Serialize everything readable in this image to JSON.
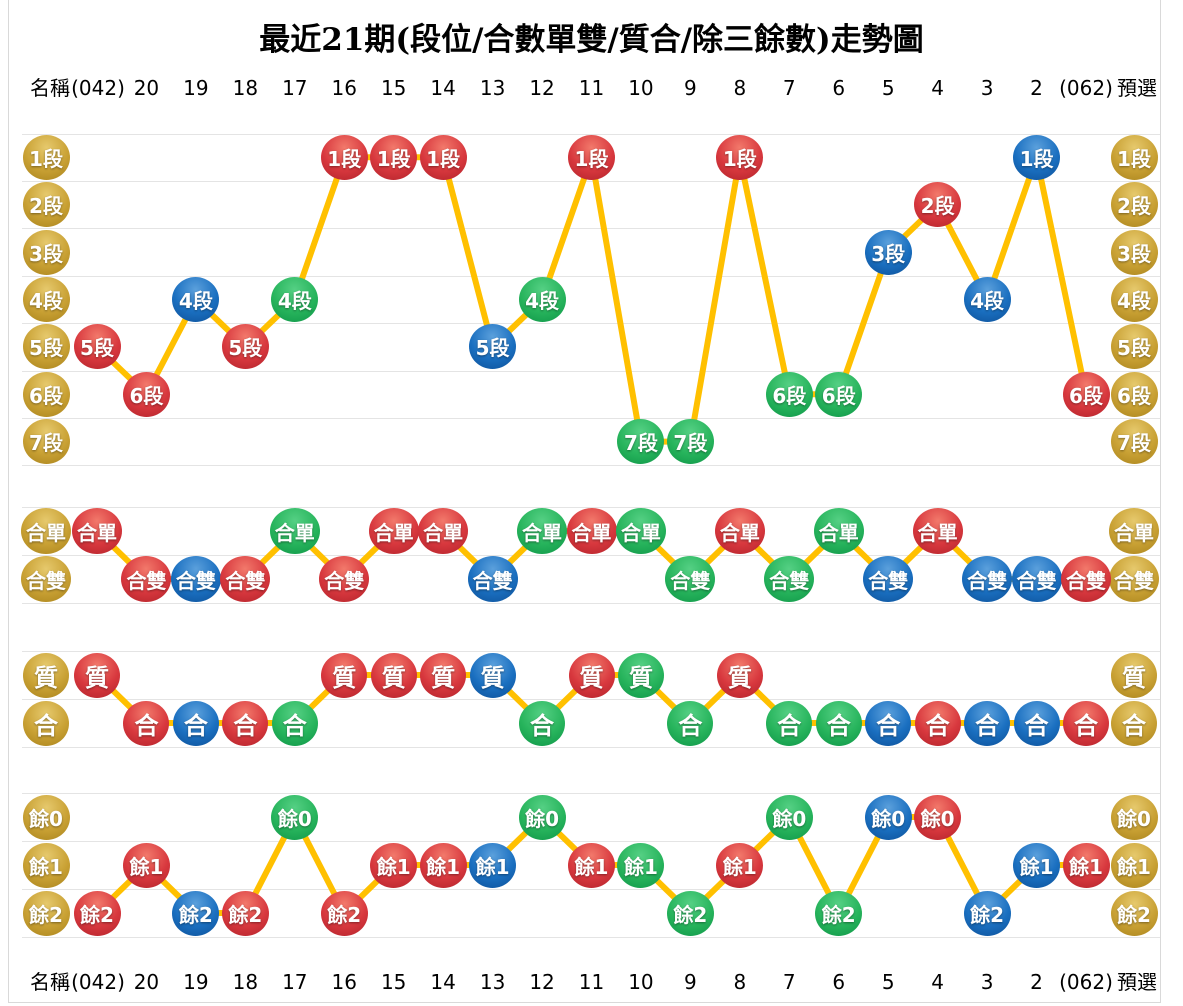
{
  "title": "最近21期(段位/合數單雙/質合/除三餘數)走勢圖",
  "axis": {
    "left_name": "名稱",
    "left_issue": "(042)",
    "periods": [
      "20",
      "19",
      "18",
      "17",
      "16",
      "15",
      "14",
      "13",
      "12",
      "11",
      "10",
      "9",
      "8",
      "7",
      "6",
      "5",
      "4",
      "3",
      "2"
    ],
    "right_issue": "(062)",
    "right_name": "預選"
  },
  "colors": {
    "red": "#D8383E",
    "blue": "#1A6FC0",
    "green": "#27B45C",
    "gold": "#C9A134",
    "line": "#FFC000",
    "grid": "#E4E4E4",
    "text": "#000000"
  },
  "chart_data": [
    {
      "type": "line",
      "name": "段位",
      "rows": [
        "1段",
        "2段",
        "3段",
        "4段",
        "5段",
        "6段",
        "7段"
      ],
      "columns": [
        "(042)",
        "20",
        "19",
        "18",
        "17",
        "16",
        "15",
        "14",
        "13",
        "12",
        "11",
        "10",
        "9",
        "8",
        "7",
        "6",
        "5",
        "4",
        "3",
        "2",
        "(062)"
      ],
      "values": [
        "5段",
        "6段",
        "4段",
        "5段",
        "4段",
        "1段",
        "1段",
        "1段",
        "5段",
        "4段",
        "1段",
        "7段",
        "7段",
        "1段",
        "6段",
        "6段",
        "3段",
        "2段",
        "4段",
        "1段",
        "6段"
      ],
      "point_colors": [
        "red",
        "red",
        "blue",
        "red",
        "green",
        "red",
        "red",
        "red",
        "blue",
        "green",
        "red",
        "green",
        "green",
        "red",
        "green",
        "green",
        "blue",
        "red",
        "blue",
        "blue",
        "red"
      ],
      "row_label_color": "gold",
      "legend_position": "both-sides",
      "grid": true
    },
    {
      "type": "line",
      "name": "合數單雙",
      "rows": [
        "合單",
        "合雙"
      ],
      "columns": [
        "(042)",
        "20",
        "19",
        "18",
        "17",
        "16",
        "15",
        "14",
        "13",
        "12",
        "11",
        "10",
        "9",
        "8",
        "7",
        "6",
        "5",
        "4",
        "3",
        "2",
        "(062)"
      ],
      "values": [
        "合單",
        "合雙",
        "合雙",
        "合雙",
        "合單",
        "合雙",
        "合單",
        "合單",
        "合雙",
        "合單",
        "合單",
        "合單",
        "合雙",
        "合單",
        "合雙",
        "合單",
        "合雙",
        "合單",
        "合雙",
        "合雙",
        "合雙"
      ],
      "point_colors": [
        "red",
        "red",
        "blue",
        "red",
        "green",
        "red",
        "red",
        "red",
        "blue",
        "green",
        "red",
        "green",
        "green",
        "red",
        "green",
        "green",
        "blue",
        "red",
        "blue",
        "blue",
        "red"
      ],
      "row_label_color": "gold",
      "legend_position": "both-sides",
      "grid": true
    },
    {
      "type": "line",
      "name": "質合",
      "rows": [
        "質",
        "合"
      ],
      "columns": [
        "(042)",
        "20",
        "19",
        "18",
        "17",
        "16",
        "15",
        "14",
        "13",
        "12",
        "11",
        "10",
        "9",
        "8",
        "7",
        "6",
        "5",
        "4",
        "3",
        "2",
        "(062)"
      ],
      "values": [
        "質",
        "合",
        "合",
        "合",
        "合",
        "質",
        "質",
        "質",
        "質",
        "合",
        "質",
        "質",
        "合",
        "質",
        "合",
        "合",
        "合",
        "合",
        "合",
        "合",
        "合"
      ],
      "point_colors": [
        "red",
        "red",
        "blue",
        "red",
        "green",
        "red",
        "red",
        "red",
        "blue",
        "green",
        "red",
        "green",
        "green",
        "red",
        "green",
        "green",
        "blue",
        "red",
        "blue",
        "blue",
        "red"
      ],
      "row_label_color": "gold",
      "legend_position": "both-sides",
      "grid": true
    },
    {
      "type": "line",
      "name": "除三餘數",
      "rows": [
        "餘0",
        "餘1",
        "餘2"
      ],
      "columns": [
        "(042)",
        "20",
        "19",
        "18",
        "17",
        "16",
        "15",
        "14",
        "13",
        "12",
        "11",
        "10",
        "9",
        "8",
        "7",
        "6",
        "5",
        "4",
        "3",
        "2",
        "(062)"
      ],
      "values": [
        "餘2",
        "餘1",
        "餘2",
        "餘2",
        "餘0",
        "餘2",
        "餘1",
        "餘1",
        "餘1",
        "餘0",
        "餘1",
        "餘1",
        "餘2",
        "餘1",
        "餘0",
        "餘2",
        "餘0",
        "餘0",
        "餘2",
        "餘1",
        "餘1"
      ],
      "point_colors": [
        "red",
        "red",
        "blue",
        "red",
        "green",
        "red",
        "red",
        "red",
        "blue",
        "green",
        "red",
        "green",
        "green",
        "red",
        "green",
        "green",
        "blue",
        "red",
        "blue",
        "blue",
        "red"
      ],
      "row_label_color": "gold",
      "legend_position": "both-sides",
      "grid": true
    }
  ]
}
